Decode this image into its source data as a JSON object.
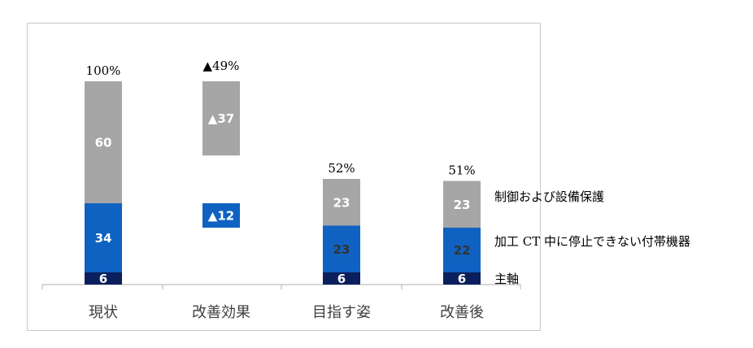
{
  "chart_data": {
    "type": "bar",
    "stacked": true,
    "categories": [
      "現状",
      "改善効果",
      "目指す姿",
      "改善後"
    ],
    "series": [
      {
        "name": "主軸",
        "color": "#0b1f5c",
        "label_color": "#ffffff",
        "values": [
          6,
          0,
          6,
          6
        ],
        "labels": [
          "6",
          "",
          "6",
          "6"
        ]
      },
      {
        "name": "加工 CT 中に停止できない付帯機器",
        "color": "#0f62c1",
        "label_color": "#ffffff",
        "values": [
          34,
          12,
          23,
          22
        ],
        "labels": [
          "34",
          "▲12",
          "23",
          "22"
        ],
        "dark_label_categories": [
          2,
          3
        ]
      },
      {
        "name": "制御および設備保護",
        "color": "#a6a6a6",
        "label_color": "#ffffff",
        "values": [
          60,
          37,
          23,
          23
        ],
        "labels": [
          "60",
          "▲37",
          "23",
          "23"
        ]
      }
    ],
    "totals": [
      "100%",
      "▲49%",
      "52%",
      "51%"
    ],
    "legend_position": "right",
    "grid": false,
    "axis_color": "#bfbfbf",
    "dark_label_color": "#333333"
  }
}
